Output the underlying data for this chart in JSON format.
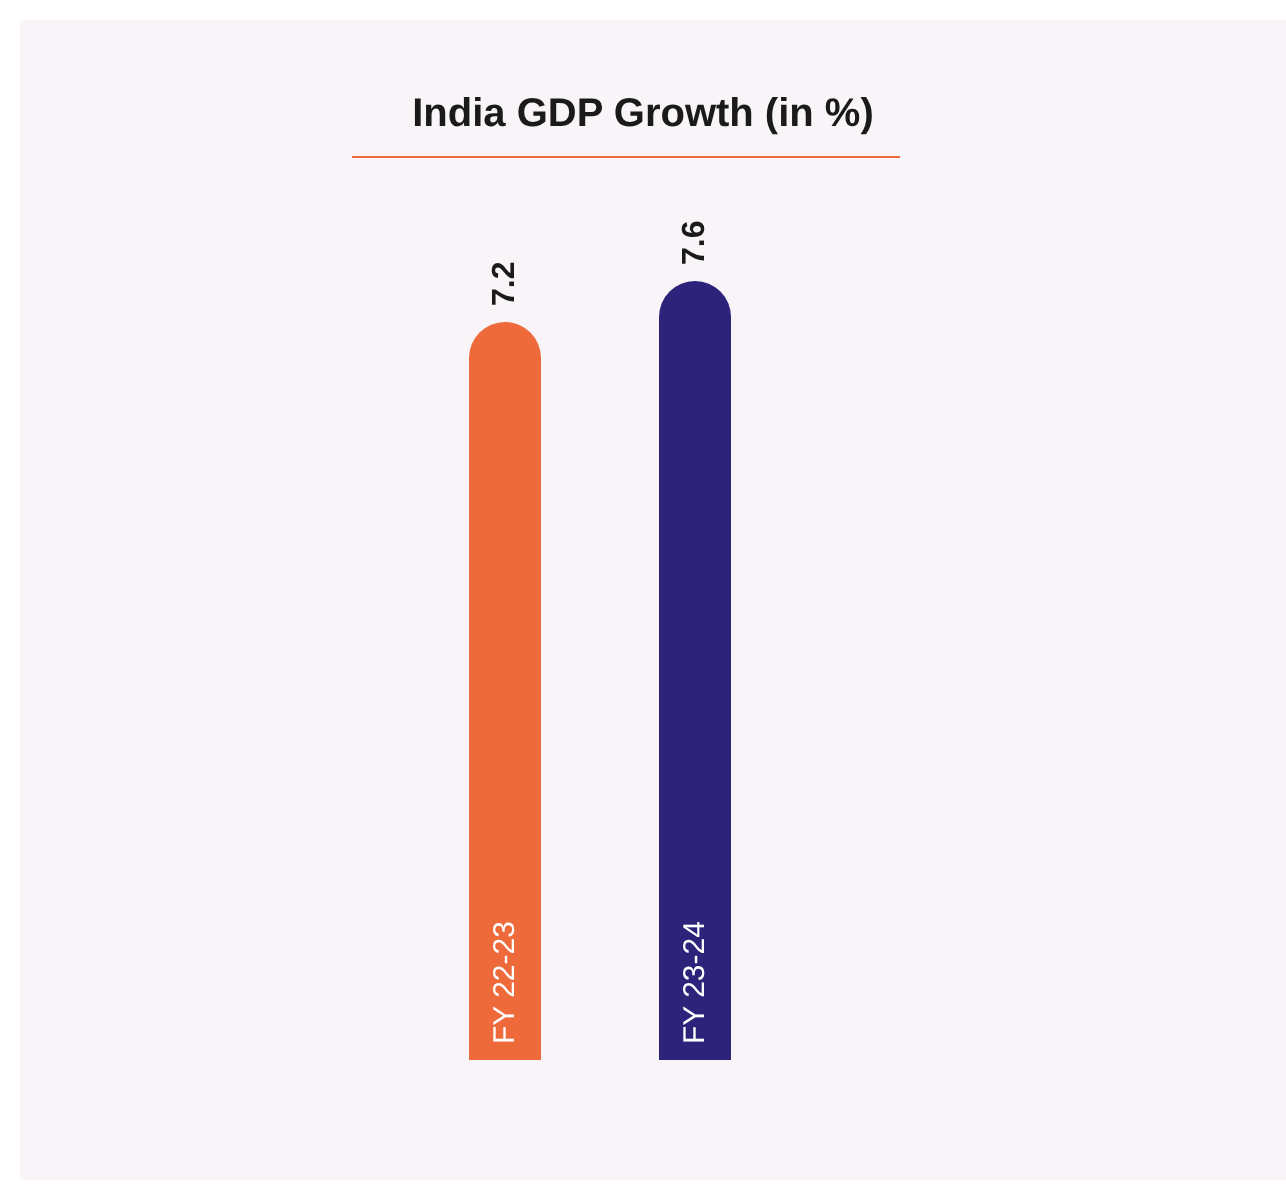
{
  "chart_data": {
    "type": "bar",
    "title": "India GDP Growth (in %)",
    "categories": [
      "FY 22-23",
      "FY 23-24"
    ],
    "values": [
      7.2,
      7.6
    ],
    "colors": [
      "#ee6a3a",
      "#2e237a"
    ],
    "data_labels": true
  }
}
